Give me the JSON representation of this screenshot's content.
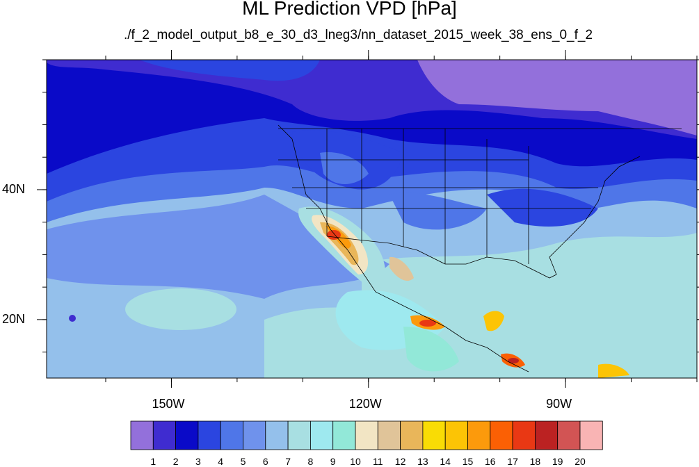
{
  "title": "ML Prediction VPD [hPa]",
  "subtitle": "./f_2_model_output_b8_e_30_d3_lneg3/nn_dataset_2015_week_38_ens_0_f_2",
  "map": {
    "lon_range": [
      -169,
      -70
    ],
    "lat_range": [
      11,
      60
    ],
    "x_ticks": [
      {
        "lon": -150,
        "label": "150W"
      },
      {
        "lon": -120,
        "label": "120W"
      },
      {
        "lon": -90,
        "label": "90W"
      }
    ],
    "y_ticks": [
      {
        "lat": 40,
        "label": "40N"
      },
      {
        "lat": 20,
        "label": "20N"
      }
    ],
    "minor_lon_step": 10,
    "minor_lat_step": 5
  },
  "colorbar": {
    "labels": [
      "1",
      "2",
      "3",
      "4",
      "5",
      "6",
      "7",
      "8",
      "9",
      "10",
      "11",
      "12",
      "13",
      "14",
      "15",
      "16",
      "17",
      "18",
      "19",
      "20"
    ],
    "colors": [
      "#9370db",
      "#3f2cd0",
      "#0a0ac8",
      "#2b45e0",
      "#4f76e8",
      "#6f92ec",
      "#94c0eb",
      "#a8dfe2",
      "#9ee9ef",
      "#92e8d8",
      "#f2e5c4",
      "#e0c499",
      "#e9b65a",
      "#f9dc05",
      "#fcc405",
      "#fc9a0c",
      "#fb6004",
      "#e93814",
      "#bb2222",
      "#d25454",
      "#f9b4b4"
    ]
  }
}
